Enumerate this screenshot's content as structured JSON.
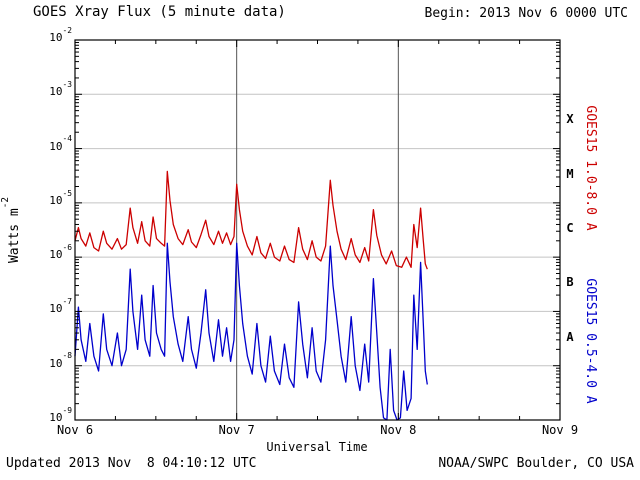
{
  "chart_data": {
    "type": "line",
    "title": "GOES Xray Flux (5 minute data)",
    "xlabel": "Universal Time",
    "ylabel": "Watts m^-2",
    "y_scale": "log",
    "ylim": [
      1e-09,
      0.01
    ],
    "xlim_hours_from_begin": [
      0,
      72
    ],
    "grid": {
      "h_lines_exponents": [
        -3,
        -4,
        -5,
        -6,
        -7,
        -8
      ],
      "v_lines_hours": [
        24,
        48
      ]
    },
    "y_tick_labels": [
      "10^-2",
      "10^-3",
      "10^-4",
      "10^-5",
      "10^-6",
      "10^-7",
      "10^-8",
      "10^-9"
    ],
    "x_tick_labels": [
      {
        "label": "Nov 6",
        "hour": 0
      },
      {
        "label": "Nov 7",
        "hour": 24
      },
      {
        "label": "Nov 8",
        "hour": 48
      },
      {
        "label": "Nov 9",
        "hour": 72
      }
    ],
    "flare_class_labels": [
      "X",
      "M",
      "C",
      "B",
      "A"
    ],
    "annotations": {
      "begin": "Begin: 2013 Nov 6 0000 UTC",
      "updated": "Updated 2013 Nov  8 04:10:12 UTC",
      "source": "NOAA/SWPC Boulder, CO USA"
    },
    "series": [
      {
        "name": "GOES15 1.0-8.0 A",
        "color": "#cc0000",
        "points": [
          [
            0.0,
            2e-06
          ],
          [
            0.5,
            3.5e-06
          ],
          [
            0.9,
            2.2e-06
          ],
          [
            1.6,
            1.6e-06
          ],
          [
            2.2,
            2.8e-06
          ],
          [
            2.8,
            1.5e-06
          ],
          [
            3.5,
            1.3e-06
          ],
          [
            4.2,
            3e-06
          ],
          [
            4.7,
            1.8e-06
          ],
          [
            5.5,
            1.4e-06
          ],
          [
            6.3,
            2.2e-06
          ],
          [
            6.9,
            1.4e-06
          ],
          [
            7.6,
            1.7e-06
          ],
          [
            8.2,
            8e-06
          ],
          [
            8.6,
            3.5e-06
          ],
          [
            9.3,
            1.8e-06
          ],
          [
            9.9,
            4.5e-06
          ],
          [
            10.4,
            2e-06
          ],
          [
            11.1,
            1.6e-06
          ],
          [
            11.6,
            5.5e-06
          ],
          [
            12.1,
            2.2e-06
          ],
          [
            12.8,
            1.8e-06
          ],
          [
            13.3,
            1.6e-06
          ],
          [
            13.7,
            3.8e-05
          ],
          [
            14.1,
            1.1e-05
          ],
          [
            14.6,
            4e-06
          ],
          [
            15.3,
            2.2e-06
          ],
          [
            16.0,
            1.7e-06
          ],
          [
            16.8,
            3.2e-06
          ],
          [
            17.3,
            1.9e-06
          ],
          [
            18.0,
            1.5e-06
          ],
          [
            18.7,
            2.6e-06
          ],
          [
            19.4,
            4.8e-06
          ],
          [
            19.9,
            2.4e-06
          ],
          [
            20.6,
            1.7e-06
          ],
          [
            21.3,
            3e-06
          ],
          [
            21.9,
            1.8e-06
          ],
          [
            22.5,
            2.8e-06
          ],
          [
            23.1,
            1.7e-06
          ],
          [
            23.6,
            2.4e-06
          ],
          [
            24.0,
            2.2e-05
          ],
          [
            24.4,
            7.5e-06
          ],
          [
            24.9,
            3e-06
          ],
          [
            25.6,
            1.6e-06
          ],
          [
            26.3,
            1.1e-06
          ],
          [
            27.0,
            2.4e-06
          ],
          [
            27.6,
            1.2e-06
          ],
          [
            28.3,
            9.5e-07
          ],
          [
            29.0,
            1.8e-06
          ],
          [
            29.6,
            1e-06
          ],
          [
            30.4,
            8.5e-07
          ],
          [
            31.1,
            1.6e-06
          ],
          [
            31.8,
            9e-07
          ],
          [
            32.5,
            8e-07
          ],
          [
            33.2,
            3.5e-06
          ],
          [
            33.8,
            1.4e-06
          ],
          [
            34.5,
            9e-07
          ],
          [
            35.2,
            2e-06
          ],
          [
            35.8,
            1e-06
          ],
          [
            36.5,
            8.5e-07
          ],
          [
            37.2,
            1.6e-06
          ],
          [
            37.9,
            2.6e-05
          ],
          [
            38.3,
            9e-06
          ],
          [
            38.9,
            3e-06
          ],
          [
            39.5,
            1.4e-06
          ],
          [
            40.2,
            9e-07
          ],
          [
            41.0,
            2.2e-06
          ],
          [
            41.6,
            1.1e-06
          ],
          [
            42.3,
            8e-07
          ],
          [
            43.0,
            1.5e-06
          ],
          [
            43.6,
            8.5e-07
          ],
          [
            44.3,
            7.5e-06
          ],
          [
            44.8,
            2.5e-06
          ],
          [
            45.5,
            1.1e-06
          ],
          [
            46.2,
            7.5e-07
          ],
          [
            47.0,
            1.3e-06
          ],
          [
            47.7,
            7e-07
          ],
          [
            48.5,
            6.5e-07
          ],
          [
            49.2,
            1e-06
          ],
          [
            49.9,
            6.5e-07
          ],
          [
            50.3,
            4e-06
          ],
          [
            50.8,
            1.5e-06
          ],
          [
            51.3,
            8e-06
          ],
          [
            51.7,
            2e-06
          ],
          [
            52.0,
            7.5e-07
          ],
          [
            52.3,
            6e-07
          ]
        ]
      },
      {
        "name": "GOES15 0.5-4.0 A",
        "color": "#0000cc",
        "points": [
          [
            0.0,
            1.5e-08
          ],
          [
            0.5,
            1.2e-07
          ],
          [
            0.9,
            3e-08
          ],
          [
            1.6,
            1.2e-08
          ],
          [
            2.2,
            6e-08
          ],
          [
            2.8,
            1.5e-08
          ],
          [
            3.5,
            8e-09
          ],
          [
            4.2,
            9e-08
          ],
          [
            4.7,
            2e-08
          ],
          [
            5.5,
            1e-08
          ],
          [
            6.3,
            4e-08
          ],
          [
            6.9,
            1e-08
          ],
          [
            7.6,
            2e-08
          ],
          [
            8.2,
            6e-07
          ],
          [
            8.6,
            1e-07
          ],
          [
            9.3,
            2e-08
          ],
          [
            9.9,
            2e-07
          ],
          [
            10.4,
            3e-08
          ],
          [
            11.1,
            1.5e-08
          ],
          [
            11.6,
            3e-07
          ],
          [
            12.1,
            4e-08
          ],
          [
            12.8,
            2e-08
          ],
          [
            13.3,
            1.5e-08
          ],
          [
            13.7,
            1.8e-06
          ],
          [
            14.1,
            3.5e-07
          ],
          [
            14.6,
            8e-08
          ],
          [
            15.3,
            2.5e-08
          ],
          [
            16.0,
            1.2e-08
          ],
          [
            16.8,
            8e-08
          ],
          [
            17.3,
            2e-08
          ],
          [
            18.0,
            9e-09
          ],
          [
            18.7,
            4e-08
          ],
          [
            19.4,
            2.5e-07
          ],
          [
            19.9,
            4e-08
          ],
          [
            20.6,
            1.2e-08
          ],
          [
            21.3,
            7e-08
          ],
          [
            21.9,
            1.5e-08
          ],
          [
            22.5,
            5e-08
          ],
          [
            23.1,
            1.2e-08
          ],
          [
            23.6,
            3e-08
          ],
          [
            24.0,
            1.8e-06
          ],
          [
            24.4,
            3e-07
          ],
          [
            24.9,
            6e-08
          ],
          [
            25.6,
            1.5e-08
          ],
          [
            26.3,
            7e-09
          ],
          [
            27.0,
            6e-08
          ],
          [
            27.6,
            1e-08
          ],
          [
            28.3,
            5e-09
          ],
          [
            29.0,
            3.5e-08
          ],
          [
            29.6,
            8e-09
          ],
          [
            30.4,
            4.5e-09
          ],
          [
            31.1,
            2.5e-08
          ],
          [
            31.8,
            6e-09
          ],
          [
            32.5,
            4e-09
          ],
          [
            33.2,
            1.5e-07
          ],
          [
            33.8,
            2.5e-08
          ],
          [
            34.5,
            6e-09
          ],
          [
            35.2,
            5e-08
          ],
          [
            35.8,
            8e-09
          ],
          [
            36.5,
            5e-09
          ],
          [
            37.2,
            3e-08
          ],
          [
            37.9,
            1.6e-06
          ],
          [
            38.3,
            3e-07
          ],
          [
            38.9,
            7e-08
          ],
          [
            39.5,
            1.5e-08
          ],
          [
            40.2,
            5e-09
          ],
          [
            41.0,
            8e-08
          ],
          [
            41.6,
            1e-08
          ],
          [
            42.3,
            3.5e-09
          ],
          [
            43.0,
            2.5e-08
          ],
          [
            43.6,
            5e-09
          ],
          [
            44.3,
            4e-07
          ],
          [
            44.8,
            4e-08
          ],
          [
            45.3,
            4e-09
          ],
          [
            45.8,
            1.1e-09
          ],
          [
            46.3,
            1e-09
          ],
          [
            46.8,
            2e-08
          ],
          [
            47.3,
            1.5e-09
          ],
          [
            47.8,
            1e-09
          ],
          [
            48.3,
            1.1e-09
          ],
          [
            48.8,
            8e-09
          ],
          [
            49.3,
            1.5e-09
          ],
          [
            49.9,
            2.5e-09
          ],
          [
            50.3,
            2e-07
          ],
          [
            50.8,
            2e-08
          ],
          [
            51.3,
            8e-07
          ],
          [
            51.7,
            6e-08
          ],
          [
            52.0,
            8e-09
          ],
          [
            52.3,
            4.5e-09
          ]
        ]
      }
    ]
  }
}
